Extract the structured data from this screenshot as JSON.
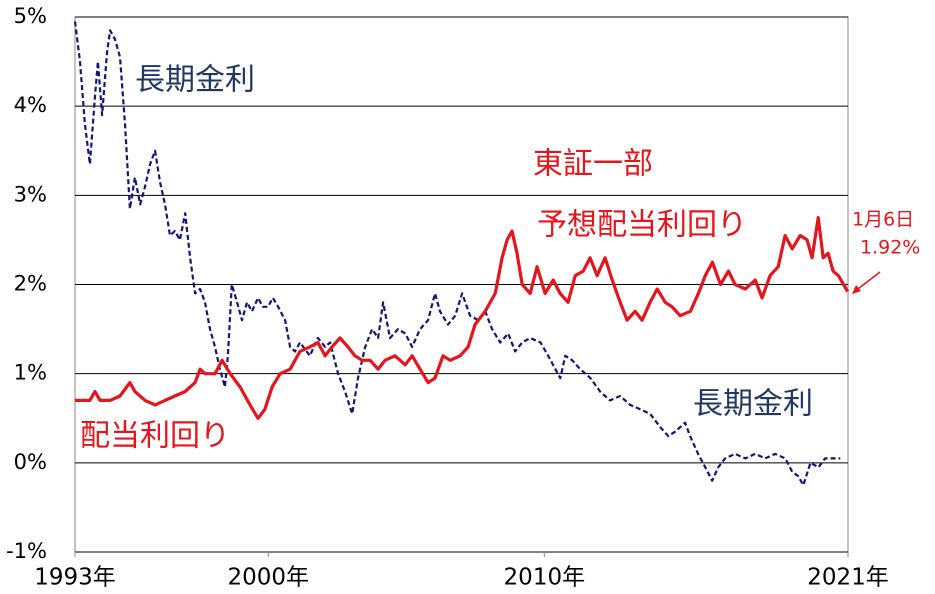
{
  "chart_data": {
    "type": "line",
    "xlim": [
      1993,
      2021
    ],
    "xticks": [
      {
        "value": 1993,
        "label": "1993年"
      },
      {
        "value": 2000,
        "label": "2000年"
      },
      {
        "value": 2010,
        "label": "2010年"
      },
      {
        "value": 2021,
        "label": "2021年"
      }
    ],
    "ylim": [
      -1,
      5
    ],
    "yticks": [
      {
        "value": -1,
        "label": "-1%"
      },
      {
        "value": 0,
        "label": "0%"
      },
      {
        "value": 1,
        "label": "1%"
      },
      {
        "value": 2,
        "label": "2%"
      },
      {
        "value": 3,
        "label": "3%"
      },
      {
        "value": 4,
        "label": "4%"
      },
      {
        "value": 5,
        "label": "5%"
      }
    ],
    "grid": true,
    "series": [
      {
        "name": "長期金利",
        "color": "#14147a",
        "dashed": true,
        "x": [
          1993.0,
          1993.18,
          1993.36,
          1993.54,
          1993.72,
          1993.83,
          1993.98,
          1994.16,
          1994.27,
          1994.45,
          1994.63,
          1994.81,
          1994.99,
          1995.17,
          1995.36,
          1995.54,
          1995.72,
          1995.9,
          1996.08,
          1996.26,
          1996.44,
          1996.62,
          1996.8,
          1996.99,
          1997.17,
          1997.35,
          1997.53,
          1997.71,
          1997.89,
          1998.07,
          1998.25,
          1998.43,
          1998.54,
          1998.68,
          1998.87,
          1999.05,
          1999.23,
          1999.41,
          1999.63,
          1999.81,
          1999.99,
          2000.17,
          2000.36,
          2000.61,
          2000.79,
          2000.97,
          2001.15,
          2001.51,
          2001.8,
          2002.06,
          2002.24,
          2002.53,
          2002.78,
          2003.04,
          2003.25,
          2003.51,
          2003.76,
          2003.98,
          2004.16,
          2004.41,
          2004.7,
          2004.96,
          2005.21,
          2005.5,
          2005.79,
          2006.04,
          2006.22,
          2006.51,
          2006.77,
          2007.02,
          2007.31,
          2007.6,
          2007.86,
          2008.11,
          2008.4,
          2008.69,
          2008.94,
          2009.2,
          2009.49,
          2009.86,
          2010.14,
          2010.4,
          2010.58,
          2010.76,
          2011.01,
          2011.3,
          2011.67,
          2012.02,
          2012.38,
          2012.75,
          2013.11,
          2013.47,
          2013.83,
          2014.2,
          2014.49,
          2014.74,
          2015.1,
          2015.28,
          2015.57,
          2015.83,
          2016.08,
          2016.3,
          2016.55,
          2016.91,
          2017.28,
          2017.64,
          2018.0,
          2018.36,
          2018.73,
          2018.98,
          2019.2,
          2019.38,
          2019.64,
          2019.93,
          2020.17,
          2020.43,
          2020.72
        ],
        "values": [
          4.95,
          4.5,
          3.8,
          3.35,
          4.1,
          4.5,
          3.9,
          4.6,
          4.85,
          4.75,
          4.55,
          3.8,
          2.85,
          3.2,
          2.9,
          3.1,
          3.35,
          3.5,
          3.15,
          2.9,
          2.55,
          2.6,
          2.5,
          2.8,
          2.3,
          1.9,
          1.95,
          1.8,
          1.5,
          1.3,
          1.05,
          0.85,
          1.2,
          2.0,
          1.8,
          1.6,
          1.8,
          1.7,
          1.85,
          1.75,
          1.75,
          1.85,
          1.75,
          1.6,
          1.3,
          1.25,
          1.35,
          1.2,
          1.4,
          1.3,
          1.35,
          1.0,
          0.8,
          0.55,
          0.95,
          1.3,
          1.5,
          1.4,
          1.8,
          1.4,
          1.5,
          1.45,
          1.3,
          1.5,
          1.6,
          1.9,
          1.7,
          1.55,
          1.65,
          1.9,
          1.65,
          1.6,
          1.7,
          1.5,
          1.35,
          1.45,
          1.25,
          1.35,
          1.4,
          1.35,
          1.2,
          1.05,
          0.95,
          1.2,
          1.15,
          1.05,
          0.95,
          0.8,
          0.7,
          0.75,
          0.65,
          0.6,
          0.55,
          0.4,
          0.3,
          0.35,
          0.45,
          0.3,
          0.1,
          -0.05,
          -0.2,
          -0.05,
          0.05,
          0.1,
          0.05,
          0.1,
          0.05,
          0.1,
          0.05,
          -0.1,
          -0.15,
          -0.25,
          0.0,
          -0.05,
          0.05,
          0.05,
          0.05
        ]
      },
      {
        "name": "配当利回り",
        "color": "#e8141b",
        "dashed": false,
        "x": [
          1993.0,
          1993.54,
          1993.72,
          1993.91,
          1994.27,
          1994.63,
          1994.99,
          1995.17,
          1995.54,
          1995.9,
          1996.26,
          1996.62,
          1996.99,
          1997.35,
          1997.53,
          1997.71,
          1998.07,
          1998.33,
          1998.62,
          1998.98,
          1999.34,
          1999.63,
          1999.88,
          2000.14,
          2000.43,
          2000.79,
          2001.15,
          2001.51,
          2001.8,
          2002.06,
          2002.31,
          2002.6,
          2002.89,
          2003.14,
          2003.4,
          2003.69,
          2003.98,
          2004.23,
          2004.59,
          2004.96,
          2005.21,
          2005.5,
          2005.79,
          2006.04,
          2006.33,
          2006.59,
          2006.95,
          2007.24,
          2007.49,
          2007.86,
          2008.22,
          2008.47,
          2008.65,
          2008.83,
          2009.01,
          2009.2,
          2009.49,
          2009.74,
          2010.03,
          2010.32,
          2010.57,
          2010.86,
          2011.12,
          2011.41,
          2011.66,
          2011.91,
          2012.2,
          2012.46,
          2012.75,
          2013.0,
          2013.29,
          2013.54,
          2013.83,
          2014.09,
          2014.38,
          2014.63,
          2014.92,
          2015.29,
          2015.58,
          2015.83,
          2016.09,
          2016.38,
          2016.67,
          2016.91,
          2017.28,
          2017.64,
          2017.89,
          2018.18,
          2018.47,
          2018.72,
          2018.98,
          2019.27,
          2019.52,
          2019.7,
          2019.92,
          2020.1,
          2020.28,
          2020.46,
          2020.65,
          2020.99
        ],
        "values": [
          0.7,
          0.7,
          0.8,
          0.7,
          0.7,
          0.75,
          0.9,
          0.8,
          0.7,
          0.65,
          0.7,
          0.75,
          0.8,
          0.9,
          1.05,
          1.0,
          1.0,
          1.15,
          1.0,
          0.85,
          0.65,
          0.5,
          0.6,
          0.85,
          1.0,
          1.05,
          1.25,
          1.3,
          1.35,
          1.2,
          1.3,
          1.4,
          1.3,
          1.2,
          1.15,
          1.15,
          1.05,
          1.15,
          1.2,
          1.1,
          1.2,
          1.05,
          0.9,
          0.95,
          1.2,
          1.15,
          1.2,
          1.3,
          1.55,
          1.7,
          1.9,
          2.3,
          2.5,
          2.6,
          2.35,
          2.0,
          1.9,
          2.2,
          1.9,
          2.05,
          1.9,
          1.8,
          2.1,
          2.15,
          2.3,
          2.1,
          2.3,
          2.05,
          1.8,
          1.6,
          1.7,
          1.6,
          1.8,
          1.95,
          1.8,
          1.75,
          1.65,
          1.7,
          1.9,
          2.1,
          2.25,
          2.0,
          2.15,
          2.0,
          1.95,
          2.05,
          1.85,
          2.1,
          2.2,
          2.55,
          2.4,
          2.55,
          2.5,
          2.3,
          2.75,
          2.3,
          2.35,
          2.15,
          2.1,
          1.92
        ]
      }
    ],
    "annotations": [
      "東証一部",
      "予想配当利回り",
      "1月6日",
      "1.92%"
    ]
  }
}
